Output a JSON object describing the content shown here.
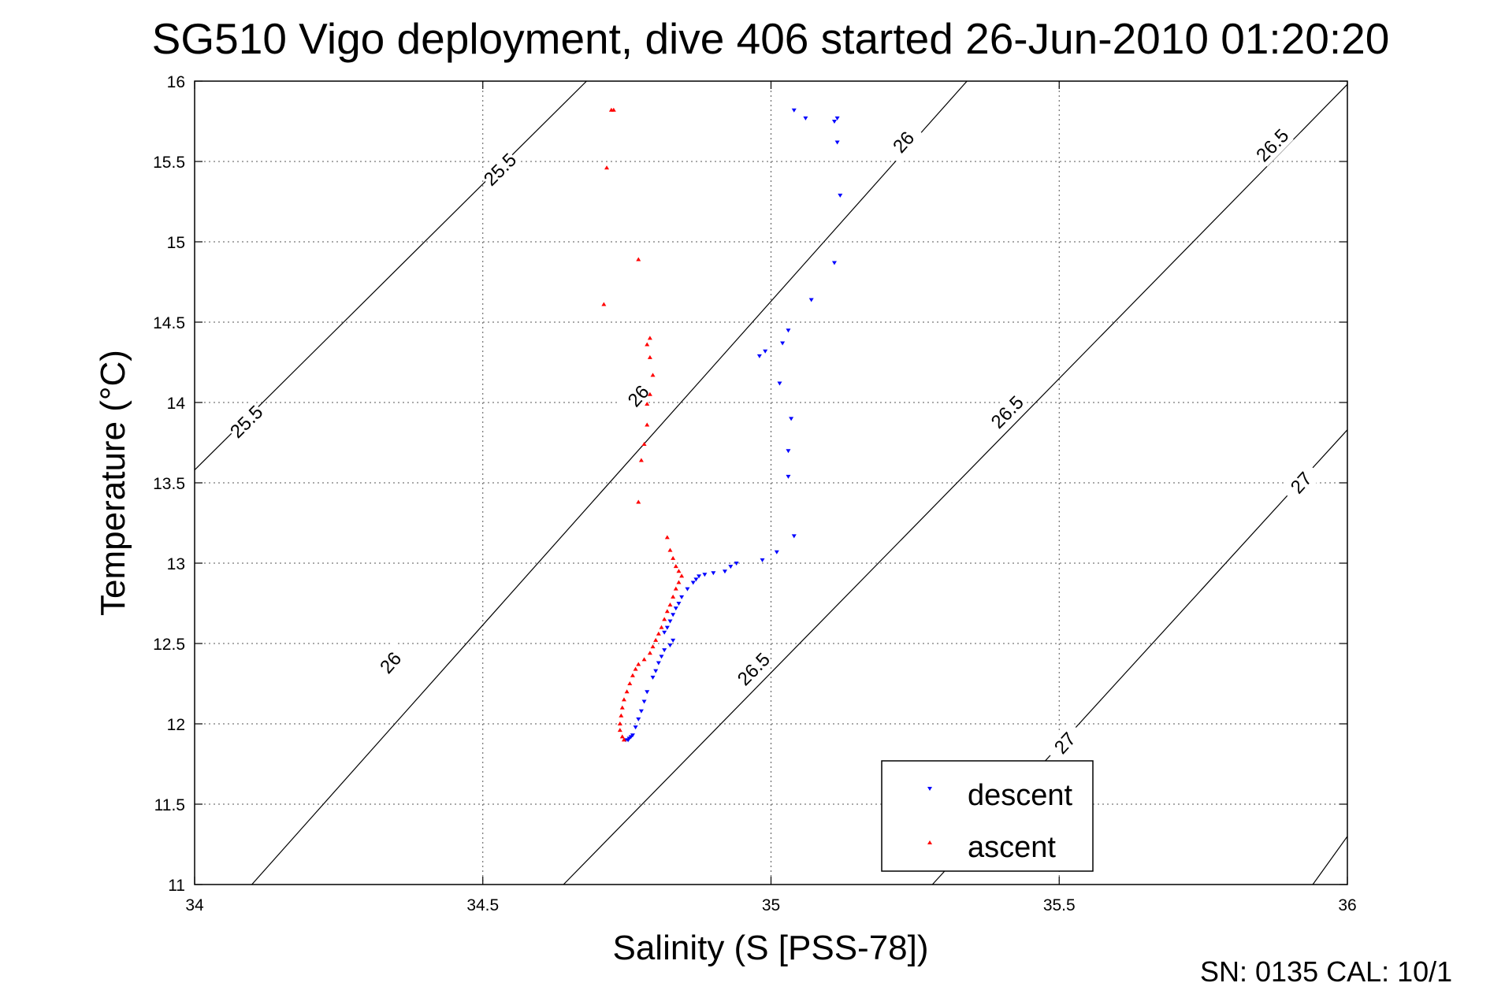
{
  "chart_data": {
    "type": "scatter",
    "title": "SG510 Vigo deployment, dive 406 started 26-Jun-2010 01:20:20",
    "xlabel": "Salinity (S [PSS-78])",
    "ylabel": "Temperature (°C)",
    "xlim": [
      34,
      36
    ],
    "ylim": [
      11,
      16
    ],
    "x_ticks": [
      34,
      34.5,
      35,
      35.5,
      36
    ],
    "y_ticks": [
      11,
      11.5,
      12,
      12.5,
      13,
      13.5,
      14,
      14.5,
      15,
      15.5,
      16
    ],
    "grid": true,
    "legend_position": "bottom-right",
    "footer": "SN: 0135  CAL: 10/1",
    "colors": {
      "descent": "#0000ff",
      "ascent": "#ff0000",
      "contour": "#000000"
    },
    "density_contours": [
      {
        "value": "25.5",
        "line": [
          [
            34.0,
            13.58
          ],
          [
            34.68,
            16.0
          ]
        ],
        "labels": [
          {
            "s": 34.09,
            "t": 13.88
          },
          {
            "s": 34.53,
            "t": 15.45
          }
        ]
      },
      {
        "value": "26",
        "line": [
          [
            34.0,
            10.6
          ],
          [
            35.34,
            16.0
          ]
        ],
        "labels": [
          {
            "s": 34.34,
            "t": 12.38
          },
          {
            "s": 34.77,
            "t": 14.04
          },
          {
            "s": 35.23,
            "t": 15.62
          }
        ]
      },
      {
        "value": "26.5",
        "line": [
          [
            34.64,
            11.0
          ],
          [
            36.0,
            15.98
          ]
        ],
        "labels": [
          {
            "s": 34.97,
            "t": 12.34
          },
          {
            "s": 35.41,
            "t": 13.94
          },
          {
            "s": 35.87,
            "t": 15.6
          }
        ]
      },
      {
        "value": "27",
        "line": [
          [
            35.28,
            11.0
          ],
          [
            36.0,
            13.83
          ]
        ],
        "labels": [
          {
            "s": 35.51,
            "t": 11.88
          },
          {
            "s": 35.92,
            "t": 13.5
          }
        ]
      },
      {
        "value": "",
        "line": [
          [
            35.94,
            11.0
          ],
          [
            36.0,
            11.3
          ]
        ],
        "labels": []
      }
    ],
    "series": [
      {
        "name": "descent",
        "marker": "triangle-down",
        "points": [
          [
            35.04,
            15.82
          ],
          [
            35.06,
            15.77
          ],
          [
            35.11,
            15.75
          ],
          [
            35.115,
            15.77
          ],
          [
            35.115,
            15.62
          ],
          [
            35.12,
            15.29
          ],
          [
            35.11,
            14.87
          ],
          [
            35.07,
            14.64
          ],
          [
            35.03,
            14.45
          ],
          [
            35.02,
            14.37
          ],
          [
            34.99,
            14.32
          ],
          [
            34.98,
            14.29
          ],
          [
            35.015,
            14.12
          ],
          [
            35.035,
            13.9
          ],
          [
            35.03,
            13.7
          ],
          [
            35.03,
            13.54
          ],
          [
            35.04,
            13.17
          ],
          [
            35.01,
            13.07
          ],
          [
            34.985,
            13.02
          ],
          [
            34.94,
            13.0
          ],
          [
            34.93,
            12.98
          ],
          [
            34.92,
            12.95
          ],
          [
            34.9,
            12.94
          ],
          [
            34.885,
            12.93
          ],
          [
            34.875,
            12.92
          ],
          [
            34.87,
            12.9
          ],
          [
            34.865,
            12.88
          ],
          [
            34.855,
            12.84
          ],
          [
            34.845,
            12.79
          ],
          [
            34.84,
            12.75
          ],
          [
            34.835,
            12.72
          ],
          [
            34.83,
            12.68
          ],
          [
            34.825,
            12.64
          ],
          [
            34.82,
            12.6
          ],
          [
            34.815,
            12.57
          ],
          [
            34.83,
            12.52
          ],
          [
            34.825,
            12.49
          ],
          [
            34.815,
            12.46
          ],
          [
            34.81,
            12.42
          ],
          [
            34.805,
            12.38
          ],
          [
            34.8,
            12.33
          ],
          [
            34.795,
            12.29
          ],
          [
            34.785,
            12.2
          ],
          [
            34.78,
            12.14
          ],
          [
            34.775,
            12.08
          ],
          [
            34.77,
            12.03
          ],
          [
            34.765,
            11.98
          ],
          [
            34.76,
            11.93
          ],
          [
            34.757,
            11.92
          ],
          [
            34.754,
            11.91
          ],
          [
            34.752,
            11.9
          ],
          [
            34.748,
            11.9
          ]
        ]
      },
      {
        "name": "ascent",
        "marker": "triangle-up",
        "points": [
          [
            34.723,
            15.82
          ],
          [
            34.727,
            15.82
          ],
          [
            34.715,
            15.46
          ],
          [
            34.77,
            14.89
          ],
          [
            34.71,
            14.61
          ],
          [
            34.79,
            14.4
          ],
          [
            34.785,
            14.36
          ],
          [
            34.79,
            14.28
          ],
          [
            34.795,
            14.17
          ],
          [
            34.79,
            14.05
          ],
          [
            34.785,
            13.99
          ],
          [
            34.785,
            13.86
          ],
          [
            34.78,
            13.74
          ],
          [
            34.775,
            13.64
          ],
          [
            34.77,
            13.38
          ],
          [
            34.82,
            13.16
          ],
          [
            34.825,
            13.08
          ],
          [
            34.83,
            13.03
          ],
          [
            34.835,
            12.98
          ],
          [
            34.84,
            12.95
          ],
          [
            34.845,
            12.92
          ],
          [
            34.84,
            12.88
          ],
          [
            34.835,
            12.84
          ],
          [
            34.83,
            12.79
          ],
          [
            34.825,
            12.74
          ],
          [
            34.82,
            12.7
          ],
          [
            34.815,
            12.65
          ],
          [
            34.81,
            12.6
          ],
          [
            34.805,
            12.56
          ],
          [
            34.8,
            12.52
          ],
          [
            34.795,
            12.48
          ],
          [
            34.79,
            12.44
          ],
          [
            34.78,
            12.4
          ],
          [
            34.77,
            12.37
          ],
          [
            34.765,
            12.34
          ],
          [
            34.76,
            12.3
          ],
          [
            34.755,
            12.25
          ],
          [
            34.75,
            12.2
          ],
          [
            34.745,
            12.15
          ],
          [
            34.742,
            12.1
          ],
          [
            34.74,
            12.05
          ],
          [
            34.738,
            12.0
          ],
          [
            34.738,
            11.96
          ],
          [
            34.742,
            11.92
          ],
          [
            34.745,
            11.9
          ]
        ]
      }
    ]
  }
}
